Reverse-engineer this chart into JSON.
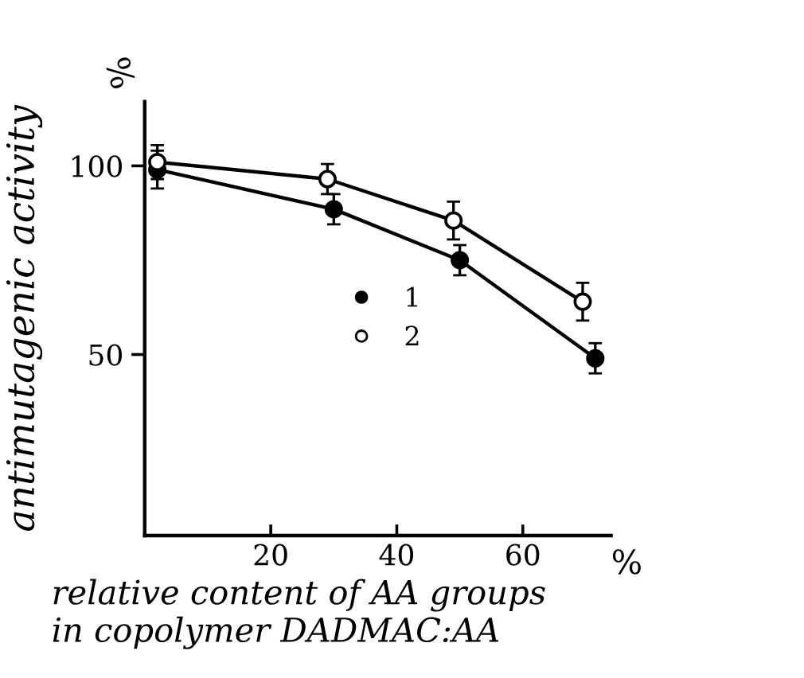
{
  "chart_data": {
    "type": "line",
    "ylabel": "antimutagenic activity",
    "xlabel": "relative content of AA groups\nin copolymer DADMAC:AA",
    "annotations": [
      "%",
      "%"
    ],
    "xlim": [
      0,
      74
    ],
    "xticks": [
      20,
      40,
      60
    ],
    "ylim": [
      2,
      117
    ],
    "yticks": [
      50,
      100
    ],
    "marker": "circle",
    "line_style": "solid",
    "grid": false,
    "legend": "center",
    "series": [
      {
        "name": "1",
        "color": "#000000",
        "x": [
          2,
          30,
          50,
          71.5
        ],
        "values": [
          99,
          88.5,
          75,
          49
        ],
        "errors": [
          5,
          4,
          4,
          4
        ]
      },
      {
        "name": "2",
        "color": "#000000",
        "x": [
          2,
          29,
          49,
          69.5
        ],
        "values": [
          101,
          96.5,
          85.5,
          64
        ],
        "errors": [
          4.5,
          4,
          5,
          5
        ]
      }
    ]
  }
}
